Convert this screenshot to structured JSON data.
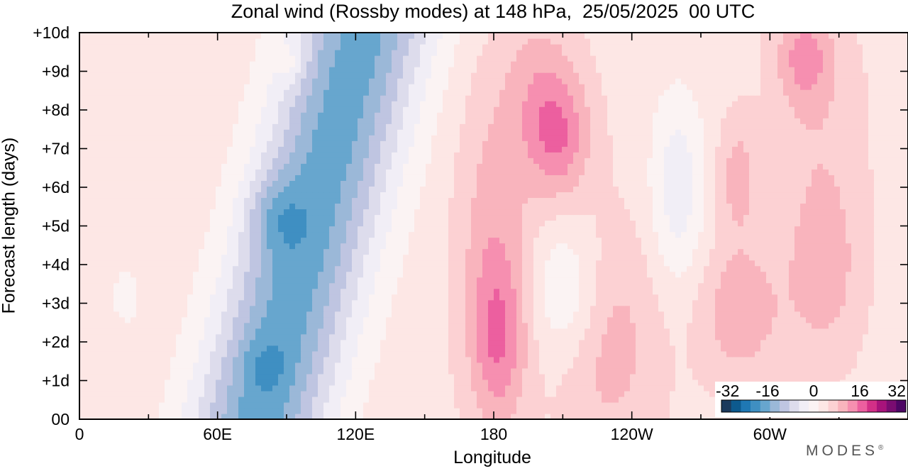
{
  "chart_data": {
    "type": "heatmap",
    "title": "Zonal wind (Rossby modes) at 148 hPa,  25/05/2025  00 UTC",
    "xlabel": "Longitude",
    "ylabel": "Forecast length (days)",
    "x_ticks": [
      "0",
      "60E",
      "120E",
      "180",
      "120W",
      "60W"
    ],
    "y_ticks": [
      "00",
      "+1d",
      "+2d",
      "+3d",
      "+4d",
      "+5d",
      "+6d",
      "+7d",
      "+8d",
      "+9d",
      "+10d"
    ],
    "xlim": [
      0,
      360
    ],
    "ylim": [
      0,
      10
    ],
    "colorbar": {
      "tick_labels": [
        "-32",
        "-16",
        "0",
        "16",
        "32"
      ],
      "range": [
        -32,
        32
      ],
      "colors": [
        "#1b3a5c",
        "#0d5a8e",
        "#1f78b4",
        "#3f8fc2",
        "#67a6ce",
        "#9bb8d8",
        "#bfc5e1",
        "#dddcec",
        "#f1eef6",
        "#fbf3f3",
        "#fde7e5",
        "#fcd1d3",
        "#f9b4bd",
        "#f68fb0",
        "#ec5f9f",
        "#d22f87",
        "#a8137b",
        "#7a0c71",
        "#4d0664"
      ]
    },
    "grid": false,
    "colormap": "diverging blue-white-pink"
  },
  "logo": {
    "text": "MODES",
    "mark": "®"
  }
}
